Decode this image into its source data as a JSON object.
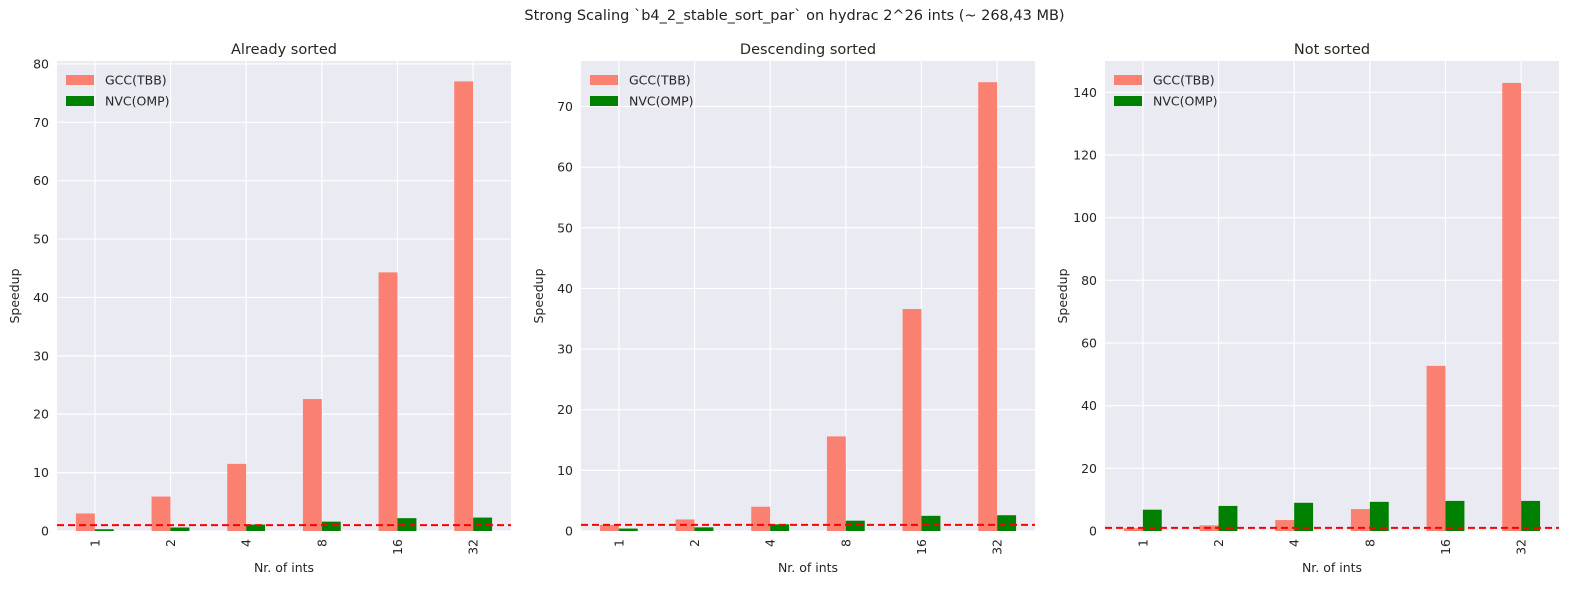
{
  "suptitle": "Strong Scaling `b4_2_stable_sort_par` on hydrac 2^26 ints (~ 268,43 MB)",
  "colors": {
    "background": "#eaeaf2",
    "grid": "#ffffff",
    "gcc": "#fa8072",
    "nvc": "#008000",
    "baseline": "#ff0000",
    "text": "#262626"
  },
  "chart_data": [
    {
      "type": "bar",
      "title": "Already sorted",
      "xlabel": "Nr. of ints",
      "ylabel": "Speedup",
      "categories": [
        "1",
        "2",
        "4",
        "8",
        "16",
        "32"
      ],
      "series": [
        {
          "name": "GCC(TBB)",
          "values": [
            3.0,
            5.9,
            11.5,
            22.6,
            44.3,
            77.0
          ]
        },
        {
          "name": "NVC(OMP)",
          "values": [
            0.3,
            0.6,
            1.1,
            1.6,
            2.2,
            2.3
          ]
        }
      ],
      "ylim": [
        0,
        80.5
      ],
      "yticks": [
        0,
        10,
        20,
        30,
        40,
        50,
        60,
        70,
        80
      ],
      "baseline": 1,
      "legend": "upper-left",
      "grid": true
    },
    {
      "type": "bar",
      "title": "Descending sorted",
      "xlabel": "Nr. of ints",
      "ylabel": "Speedup",
      "categories": [
        "1",
        "2",
        "4",
        "8",
        "16",
        "32"
      ],
      "series": [
        {
          "name": "GCC(TBB)",
          "values": [
            1.0,
            1.9,
            4.0,
            15.6,
            36.6,
            74.0
          ]
        },
        {
          "name": "NVC(OMP)",
          "values": [
            0.4,
            0.6,
            1.1,
            1.7,
            2.5,
            2.6
          ]
        }
      ],
      "ylim": [
        0,
        77.5
      ],
      "yticks": [
        0,
        10,
        20,
        30,
        40,
        50,
        60,
        70
      ],
      "baseline": 1,
      "legend": "upper-left",
      "grid": true
    },
    {
      "type": "bar",
      "title": "Not sorted",
      "xlabel": "Nr. of ints",
      "ylabel": "Speedup",
      "categories": [
        "1",
        "2",
        "4",
        "8",
        "16",
        "32"
      ],
      "series": [
        {
          "name": "GCC(TBB)",
          "values": [
            0.9,
            1.8,
            3.5,
            7.0,
            52.7,
            143.0
          ]
        },
        {
          "name": "NVC(OMP)",
          "values": [
            6.8,
            8.0,
            9.0,
            9.3,
            9.6,
            9.6
          ]
        }
      ],
      "ylim": [
        0,
        150
      ],
      "yticks": [
        0,
        20,
        40,
        60,
        80,
        100,
        120,
        140
      ],
      "baseline": 1,
      "legend": "upper-left",
      "grid": true
    }
  ]
}
